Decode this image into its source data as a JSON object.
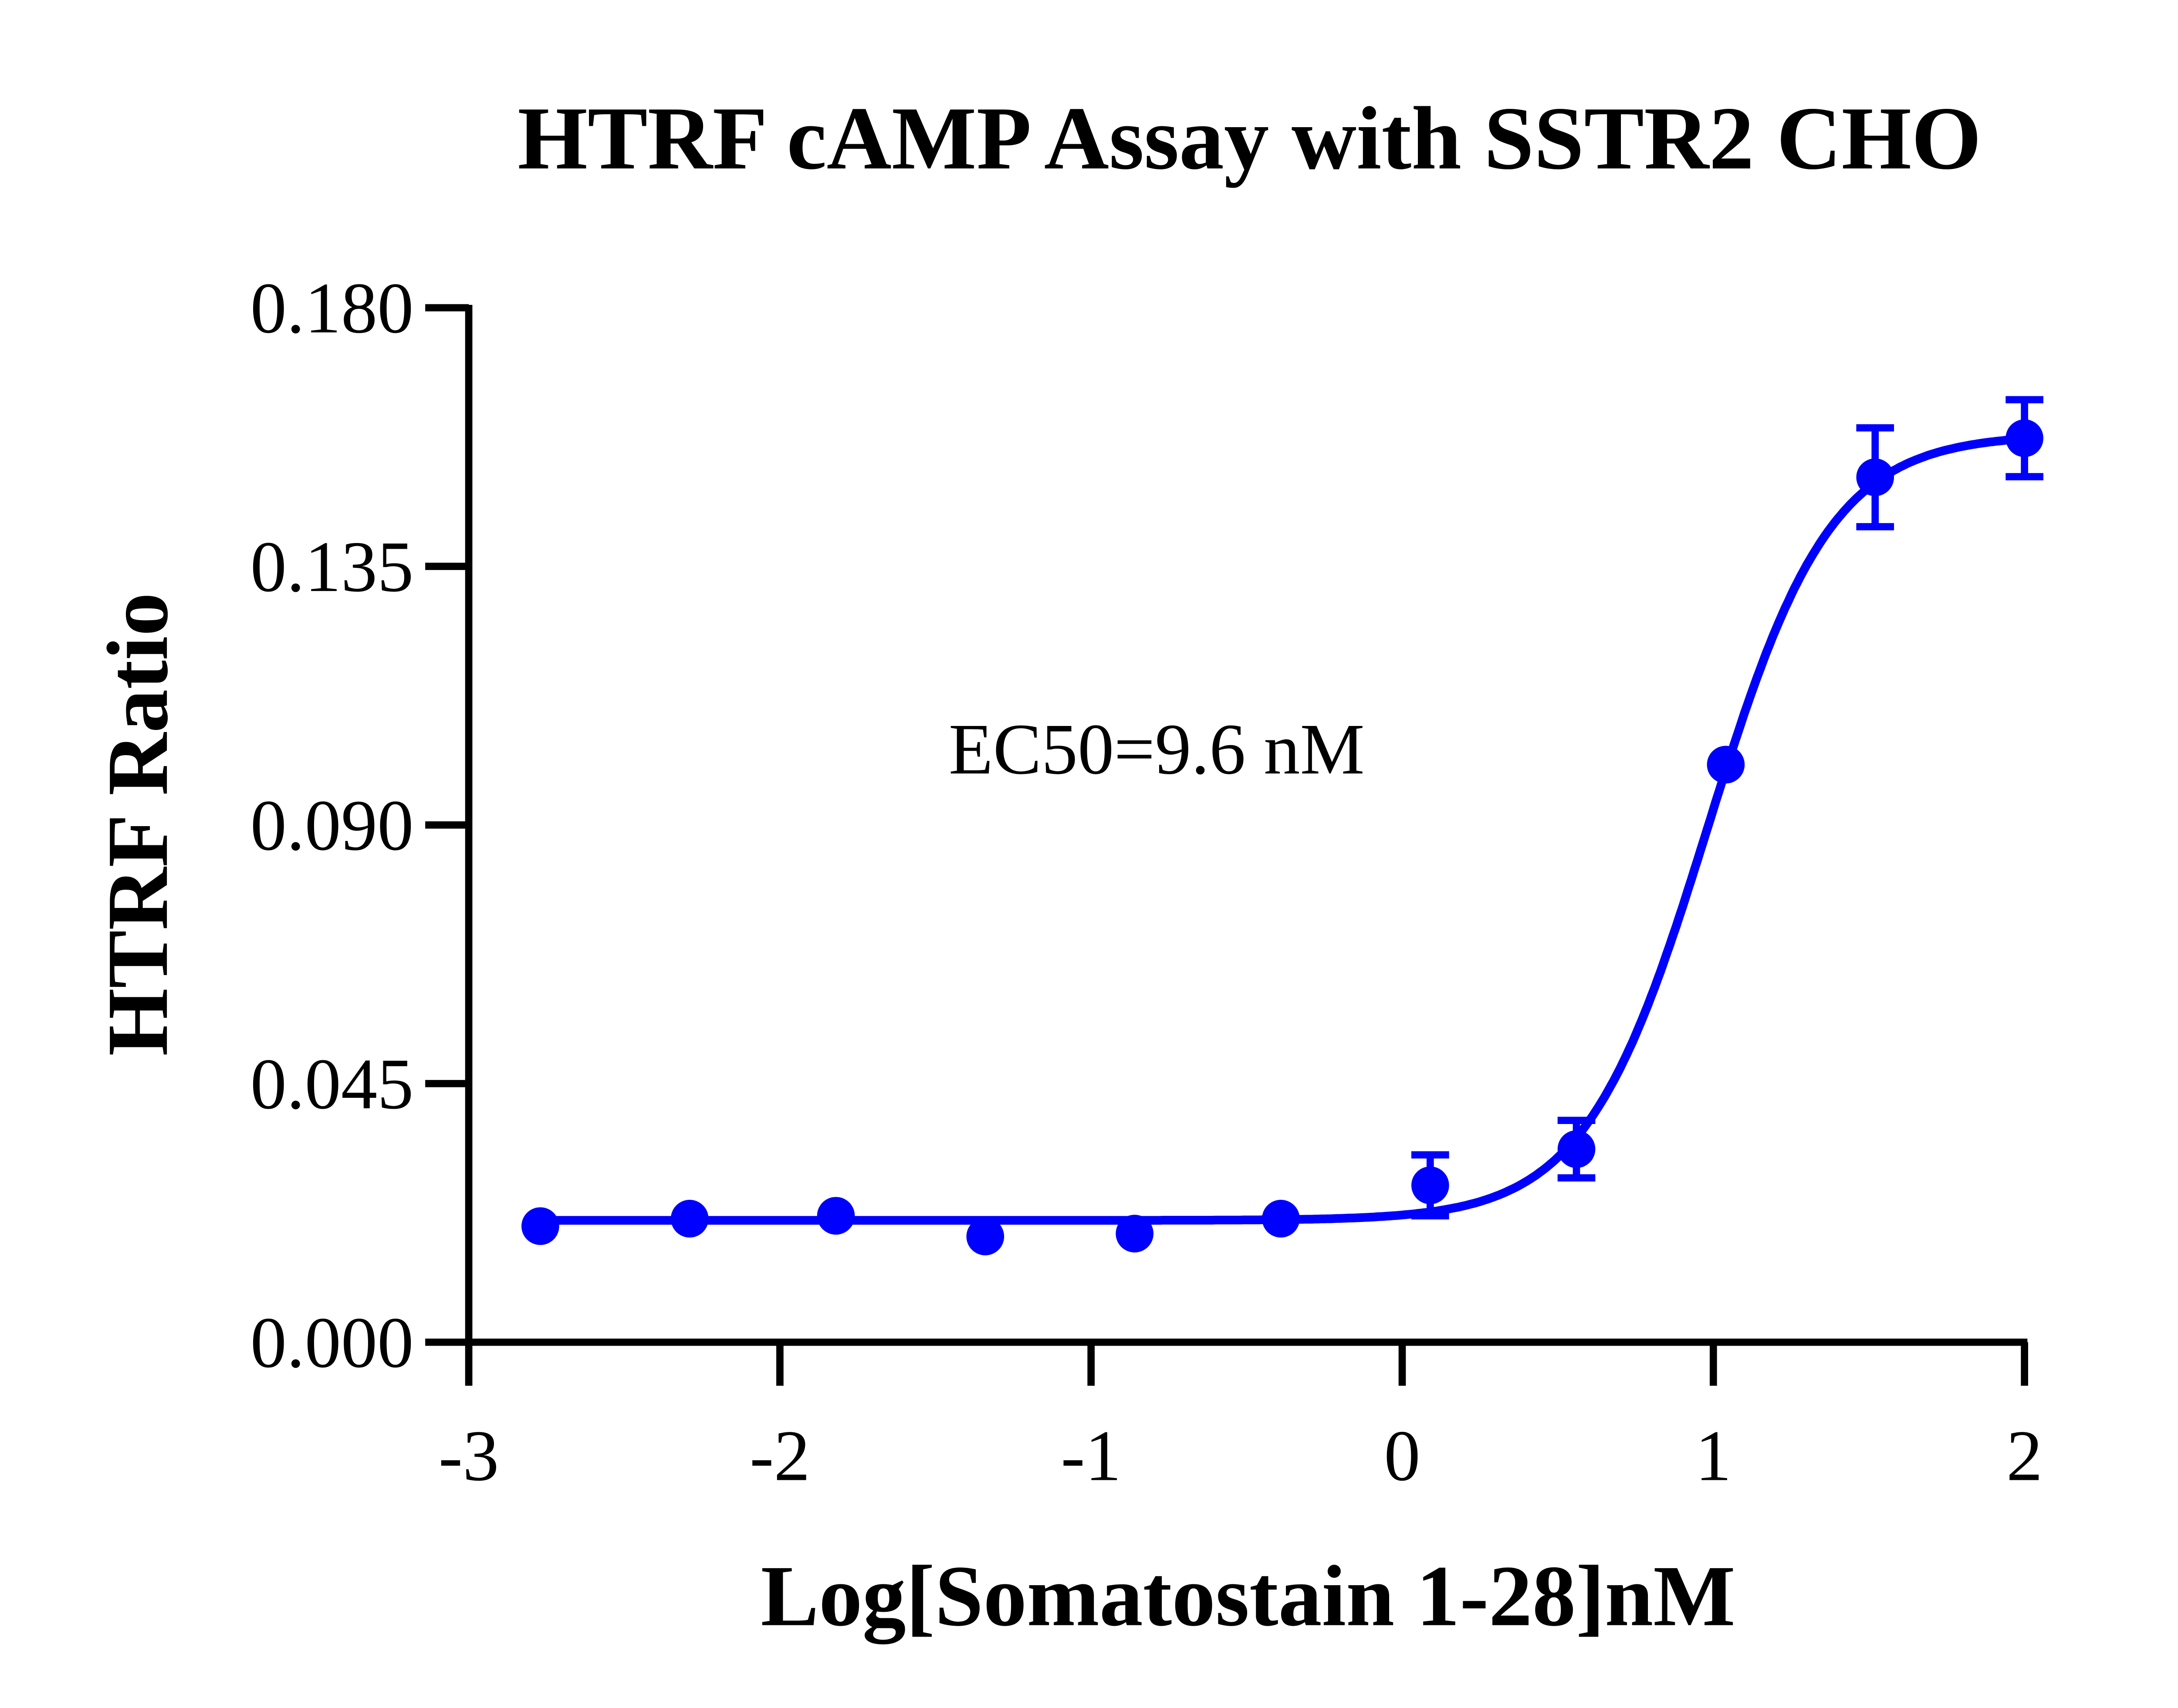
{
  "chart_data": {
    "type": "scatter",
    "title": "HTRF cAMP Assay with SSTR2 CHO",
    "xlabel": "Log[Somatostain 1-28]nM",
    "ylabel": "HTRF Ratio",
    "xlim": [
      -3,
      2
    ],
    "ylim": [
      0,
      0.18
    ],
    "xticks": [
      "-3",
      "-2",
      "-1",
      "0",
      "1",
      "2"
    ],
    "yticks": [
      "0.000",
      "0.045",
      "0.090",
      "0.135",
      "0.180"
    ],
    "grid": false,
    "color": "#0000ff",
    "annotation": "EC50=9.6 nM",
    "series": [
      {
        "x": [
          -2.77,
          -2.29,
          -1.82,
          -1.34,
          -0.86,
          -0.39,
          0.09,
          0.56,
          1.04,
          1.52,
          2.0
        ],
        "y": [
          0.0202,
          0.0215,
          0.022,
          0.0184,
          0.0189,
          0.0215,
          0.0273,
          0.0336,
          0.1005,
          0.1505,
          0.1573
        ],
        "error": [
          0,
          0,
          0,
          0,
          0,
          0,
          0.0053,
          0.005,
          0,
          0.0086,
          0.0067
        ]
      }
    ],
    "fit": {
      "model": "four-parameter logistic",
      "bottom": 0.0212,
      "top": 0.158,
      "logEC50": 0.982,
      "hill": 2.2
    }
  }
}
